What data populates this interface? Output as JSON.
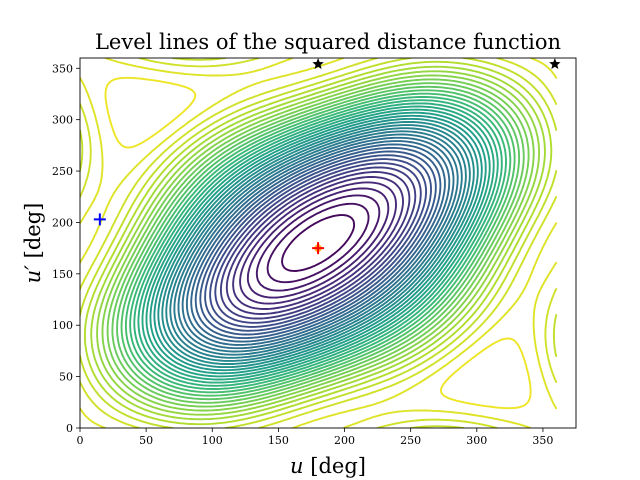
{
  "chart_data": {
    "type": "contour",
    "title": "Level lines of the squared distance function",
    "xlabel_var": "u",
    "xlabel_unit": "[deg]",
    "ylabel_var": "u′",
    "ylabel_unit": "[deg]",
    "xlim": [
      0,
      375
    ],
    "ylim": [
      0,
      360
    ],
    "xticks": [
      0,
      50,
      100,
      150,
      200,
      250,
      300,
      350
    ],
    "yticks": [
      0,
      50,
      100,
      150,
      200,
      250,
      300,
      350
    ],
    "grid": false,
    "colormap": "viridis",
    "levels": 42,
    "markers": [
      {
        "kind": "plus",
        "color": "#0000ff",
        "x": 15,
        "y": 203
      },
      {
        "kind": "plus",
        "color": "#ff0000",
        "x": 180,
        "y": 175
      },
      {
        "kind": "dot",
        "color": "#ffa500",
        "x": 180,
        "y": 175
      },
      {
        "kind": "star",
        "color": "#000000",
        "x": 180,
        "y": 354
      },
      {
        "kind": "star",
        "color": "#000000",
        "x": 359,
        "y": 354
      }
    ]
  }
}
